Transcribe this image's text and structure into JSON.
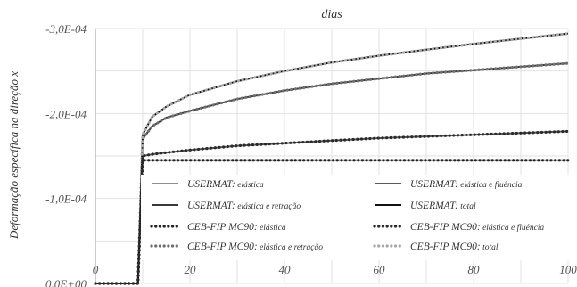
{
  "chart_data": {
    "type": "line",
    "title": "dias",
    "xlabel": "dias",
    "ylabel": "Deformação específica na direção x",
    "xlim": [
      0,
      100
    ],
    "ylim": [
      0,
      -0.0003
    ],
    "y_axis_inverted": true,
    "x_axis_position": "top",
    "grid": true,
    "x_ticks": [
      "0",
      "20",
      "40",
      "60",
      "80",
      "100"
    ],
    "y_ticks": [
      "0,0E+00",
      "-1,0E-04",
      "-2,0E-04",
      "-3,0E-04"
    ],
    "legend_position": "bottom",
    "x": [
      0,
      9,
      10,
      12,
      15,
      20,
      30,
      40,
      50,
      60,
      70,
      80,
      90,
      100
    ],
    "series": [
      {
        "name": "USERMAT: elástica",
        "color": "#8f8f8f",
        "style": "solid",
        "values": [
          0,
          0,
          -0.000145,
          -0.000145,
          -0.000145,
          -0.000145,
          -0.000145,
          -0.000145,
          -0.000145,
          -0.000145,
          -0.000145,
          -0.000145,
          -0.000145,
          -0.000145
        ]
      },
      {
        "name": "USERMAT: elástica e fluência",
        "color": "#5a5a5a",
        "style": "solid",
        "values": [
          0,
          0,
          -0.00015,
          -0.000152,
          -0.000154,
          -0.000157,
          -0.000162,
          -0.000165,
          -0.000168,
          -0.000171,
          -0.000173,
          -0.000175,
          -0.000177,
          -0.000179
        ]
      },
      {
        "name": "USERMAT: elástica e retração",
        "color": "#3a3a3a",
        "style": "solid",
        "values": [
          0,
          0,
          -0.00017,
          -0.000185,
          -0.000195,
          -0.000203,
          -0.000217,
          -0.000227,
          -0.000235,
          -0.000241,
          -0.000247,
          -0.000251,
          -0.000255,
          -0.000259
        ]
      },
      {
        "name": "USERMAT: total",
        "color": "#111111",
        "style": "solid",
        "values": [
          0,
          0,
          -0.000175,
          -0.000196,
          -0.000208,
          -0.000222,
          -0.000238,
          -0.00025,
          -0.00026,
          -0.000268,
          -0.000275,
          -0.000282,
          -0.000288,
          -0.000294
        ]
      },
      {
        "name": "CEB-FIP MC90: elástica",
        "color": "#222222",
        "style": "dotted",
        "values": [
          0,
          0,
          -0.000145,
          -0.000145,
          -0.000145,
          -0.000145,
          -0.000145,
          -0.000145,
          -0.000145,
          -0.000145,
          -0.000145,
          -0.000145,
          -0.000145,
          -0.000145
        ]
      },
      {
        "name": "CEB-FIP MC90: elástica e fluência",
        "color": "#2a2a2a",
        "style": "dotted",
        "values": [
          0,
          0,
          -0.00015,
          -0.000152,
          -0.000154,
          -0.000157,
          -0.000162,
          -0.000165,
          -0.000168,
          -0.000171,
          -0.000173,
          -0.000175,
          -0.000177,
          -0.000179
        ]
      },
      {
        "name": "CEB-FIP MC90: elástica e retração",
        "color": "#707070",
        "style": "dotted",
        "values": [
          0,
          0,
          -0.00017,
          -0.000185,
          -0.000195,
          -0.000203,
          -0.000217,
          -0.000227,
          -0.000235,
          -0.000241,
          -0.000247,
          -0.000251,
          -0.000255,
          -0.000259
        ]
      },
      {
        "name": "CEB-FIP MC90: total",
        "color": "#a8a8a8",
        "style": "dotted",
        "values": [
          0,
          0,
          -0.000175,
          -0.000196,
          -0.000208,
          -0.000222,
          -0.000238,
          -0.00025,
          -0.00026,
          -0.000268,
          -0.000275,
          -0.000282,
          -0.000288,
          -0.000294
        ]
      }
    ]
  }
}
